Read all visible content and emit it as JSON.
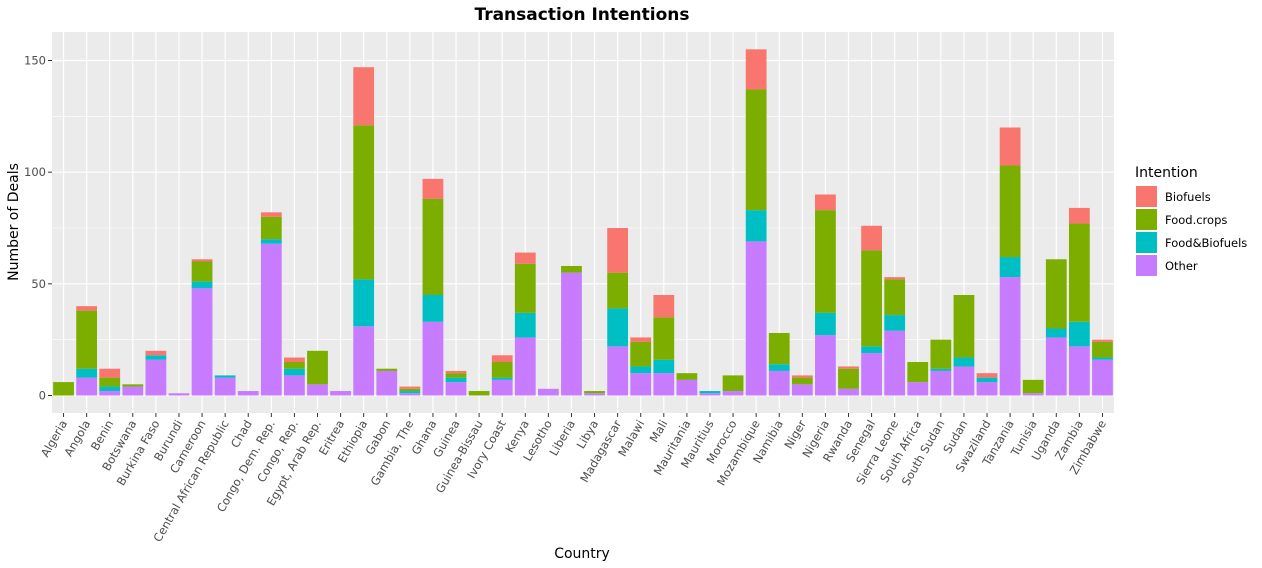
{
  "chart_data": {
    "type": "bar",
    "stacked": true,
    "title": "Transaction Intentions",
    "xlabel": "Country",
    "ylabel": "Number of Deals",
    "ylim": [
      0,
      155
    ],
    "yticks": [
      0,
      50,
      100,
      150
    ],
    "grid": true,
    "legend": {
      "title": "Intention",
      "position": "right"
    },
    "categories": [
      "Algeria",
      "Angola",
      "Benin",
      "Botswana",
      "Burkina Faso",
      "Burundi",
      "Cameroon",
      "Central African Republic",
      "Chad",
      "Congo, Dem. Rep.",
      "Congo, Rep.",
      "Egypt, Arab Rep.",
      "Eritrea",
      "Ethiopia",
      "Gabon",
      "Gambia, The",
      "Ghana",
      "Guinea",
      "Guinea-Bissau",
      "Ivory Coast",
      "Kenya",
      "Lesotho",
      "Liberia",
      "Libya",
      "Madagascar",
      "Malawi",
      "Mali",
      "Mauritania",
      "Mauritius",
      "Morocco",
      "Mozambique",
      "Namibia",
      "Niger",
      "Nigeria",
      "Rwanda",
      "Senegal",
      "Sierra Leone",
      "South Africa",
      "South Sudan",
      "Sudan",
      "Swaziland",
      "Tanzania",
      "Tunisia",
      "Uganda",
      "Zambia",
      "Zimbabwe"
    ],
    "series": [
      {
        "name": "Other",
        "color": "#C77CFF",
        "values": [
          0,
          8,
          2,
          4,
          16,
          1,
          48,
          8,
          2,
          68,
          9,
          5,
          2,
          31,
          11,
          1,
          33,
          6,
          0,
          7,
          26,
          3,
          55,
          1,
          22,
          10,
          10,
          7,
          1,
          2,
          69,
          11,
          5,
          27,
          3,
          19,
          29,
          6,
          11,
          13,
          6,
          53,
          1,
          26,
          22,
          16
        ]
      },
      {
        "name": "Food&Biofuels",
        "color": "#00BFC4",
        "values": [
          0,
          4,
          2,
          0,
          2,
          0,
          3,
          1,
          0,
          2,
          3,
          0,
          0,
          21,
          0,
          1,
          12,
          2,
          0,
          1,
          11,
          0,
          0,
          0,
          17,
          3,
          6,
          0,
          1,
          0,
          14,
          3,
          0,
          10,
          0,
          3,
          7,
          0,
          1,
          4,
          2,
          9,
          0,
          4,
          11,
          1
        ]
      },
      {
        "name": "Food.crops",
        "color": "#7CAE00",
        "values": [
          6,
          26,
          4,
          1,
          0,
          0,
          9,
          0,
          0,
          10,
          3,
          15,
          0,
          69,
          1,
          1,
          43,
          2,
          2,
          7,
          22,
          0,
          3,
          1,
          16,
          11,
          19,
          3,
          0,
          7,
          54,
          14,
          3,
          46,
          9,
          43,
          16,
          9,
          13,
          28,
          0,
          41,
          6,
          31,
          44,
          7
        ]
      },
      {
        "name": "Biofuels",
        "color": "#F8766D",
        "values": [
          0,
          2,
          4,
          0,
          2,
          0,
          1,
          0,
          0,
          2,
          2,
          0,
          0,
          26,
          0,
          1,
          9,
          1,
          0,
          3,
          5,
          0,
          0,
          0,
          20,
          2,
          10,
          0,
          0,
          0,
          18,
          0,
          1,
          7,
          1,
          11,
          1,
          0,
          0,
          0,
          2,
          17,
          0,
          0,
          7,
          1
        ]
      }
    ],
    "legend_order": [
      "Biofuels",
      "Food.crops",
      "Food&Biofuels",
      "Other"
    ],
    "panel_background": "#EBEBEB",
    "grid_color": "#FFFFFF"
  }
}
